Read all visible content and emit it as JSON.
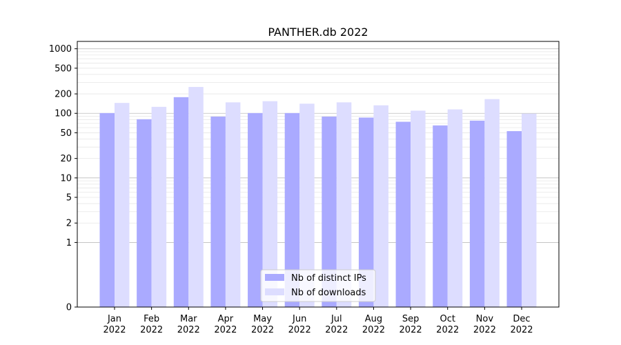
{
  "chart_data": {
    "type": "bar",
    "title": "PANTHER.db 2022",
    "xlabel": "",
    "ylabel": "",
    "y_scale": "symlog",
    "ylim": [
      0,
      1300
    ],
    "yticks": [
      0,
      1,
      2,
      5,
      10,
      20,
      50,
      100,
      200,
      500,
      1000
    ],
    "ytick_labels": [
      "0",
      "1",
      "2",
      "5",
      "10",
      "20",
      "50",
      "100",
      "200",
      "500",
      "1000"
    ],
    "grid": "horizontal",
    "legend_position": "bottom-center",
    "categories": [
      {
        "month": "Jan",
        "year": "2022"
      },
      {
        "month": "Feb",
        "year": "2022"
      },
      {
        "month": "Mar",
        "year": "2022"
      },
      {
        "month": "Apr",
        "year": "2022"
      },
      {
        "month": "May",
        "year": "2022"
      },
      {
        "month": "Jun",
        "year": "2022"
      },
      {
        "month": "Jul",
        "year": "2022"
      },
      {
        "month": "Aug",
        "year": "2022"
      },
      {
        "month": "Sep",
        "year": "2022"
      },
      {
        "month": "Oct",
        "year": "2022"
      },
      {
        "month": "Nov",
        "year": "2022"
      },
      {
        "month": "Dec",
        "year": "2022"
      }
    ],
    "series": [
      {
        "name": "Nb of distinct IPs",
        "color": "#aaaaff",
        "values": [
          101,
          81,
          178,
          89,
          101,
          101,
          89,
          86,
          74,
          65,
          77,
          53
        ]
      },
      {
        "name": "Nb of downloads",
        "color": "#ddddff",
        "values": [
          145,
          126,
          256,
          148,
          154,
          141,
          148,
          133,
          110,
          115,
          166,
          99
        ]
      }
    ]
  }
}
